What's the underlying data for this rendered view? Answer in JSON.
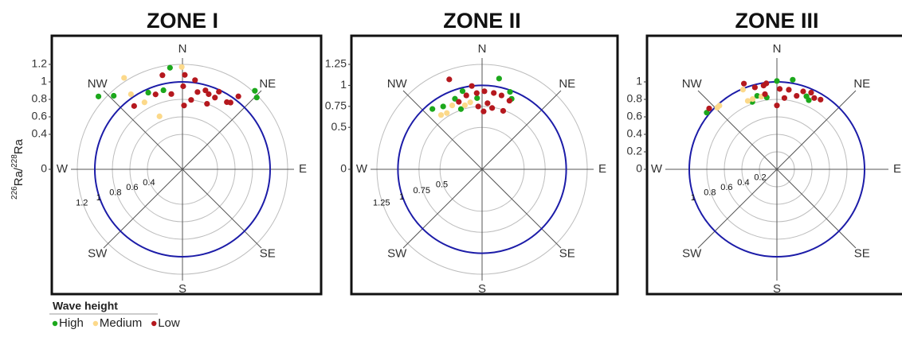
{
  "legend": {
    "title": "Wave height"
  },
  "chart_data": [
    {
      "type": "polar-scatter",
      "title": "ZONE I",
      "ylabel": [
        "226",
        "Ra/",
        "228",
        "Ra"
      ],
      "directions": [
        "N",
        "NE",
        "E",
        "SE",
        "S",
        "SW",
        "W",
        "NW"
      ],
      "rlim": [
        0,
        1.2
      ],
      "rticks": [
        0,
        0.4,
        0.6,
        0.8,
        1,
        1.2
      ],
      "reference_ring": 1,
      "ring_color": "#1c1ca8",
      "series": [
        {
          "name": "High",
          "color": "#1ca81c",
          "theta": [
            353,
            311,
            317,
            336,
            42.6,
            45.9,
            346.5
          ],
          "r": [
            1.17,
            1.27,
            1.15,
            0.96,
            1.22,
            1.18,
            0.93
          ]
        },
        {
          "name": "Medium",
          "color": "#fcd98a",
          "theta": [
            327.5,
            330.5,
            336.6,
            359.6,
            325.6
          ],
          "r": [
            1.24,
            0.88,
            0.66,
            1.17,
            1.04
          ]
        },
        {
          "name": "Low",
          "color": "#b5181e",
          "theta": [
            322.7,
            348,
            1.4,
            8,
            0.5,
            351.6,
            11,
            16.2,
            25.1,
            35.7,
            37.4,
            7.1,
            19.2,
            24.3,
            1.4,
            340.3,
            20.5,
            33.4
          ],
          "r": [
            0.91,
            1.1,
            1.08,
            1.03,
            0.95,
            0.87,
            0.9,
            0.94,
            0.98,
            0.94,
            1.05,
            0.8,
            0.91,
            0.9,
            0.73,
            0.91,
            0.8,
            0.92
          ]
        }
      ]
    },
    {
      "type": "polar-scatter",
      "title": "ZONE II",
      "directions": [
        "N",
        "NE",
        "E",
        "SE",
        "S",
        "SW",
        "W",
        "NW"
      ],
      "rlim": [
        0,
        1.25
      ],
      "rticks": [
        0,
        0.5,
        0.75,
        1,
        1.25
      ],
      "reference_ring": 1,
      "ring_color": "#1c1ca8",
      "series": [
        {
          "name": "High",
          "color": "#1ca81c",
          "theta": [
            10.6,
            320.6,
            328.3,
            346,
            19.8,
            22.7,
            339,
            356,
            340.7
          ],
          "r": [
            1.1,
            0.93,
            0.88,
            0.96,
            0.98,
            0.91,
            0.9,
            0.85,
            0.76
          ]
        },
        {
          "name": "Medium",
          "color": "#fcd98a",
          "theta": [
            335,
            328,
            350,
            345,
            323
          ],
          "r": [
            0.84,
            0.79,
            0.81,
            0.79,
            0.81
          ]
        },
        {
          "name": "Low",
          "color": "#b5181e",
          "theta": [
            340,
            353,
            356,
            1.7,
            8.7,
            14.7,
            4.7,
            1.5,
            9.3,
            19.8,
            21.7,
            348,
            356.5,
            341
          ],
          "r": [
            1.14,
            1.0,
            0.91,
            0.93,
            0.92,
            0.91,
            0.79,
            0.69,
            0.74,
            0.74,
            0.88,
            0.9,
            0.75,
            0.85
          ]
        }
      ]
    },
    {
      "type": "polar-scatter",
      "title": "ZONE III",
      "directions": [
        "N",
        "NE",
        "E",
        "SE",
        "S",
        "SW",
        "W",
        "NW"
      ],
      "rlim": [
        0,
        1.2
      ],
      "rticks": [
        0,
        0.2,
        0.4,
        0.6,
        0.8,
        1
      ],
      "reference_ring": 1,
      "ring_color": "#1c1ca8",
      "series": [
        {
          "name": "High",
          "color": "#1ca81c",
          "theta": [
            0,
            10,
            345,
            352,
            22,
            24.7,
            309,
            340
          ],
          "r": [
            1.01,
            1.04,
            0.87,
            0.83,
            0.9,
            0.87,
            1.03,
            0.82
          ]
        },
        {
          "name": "Medium",
          "color": "#fcd98a",
          "theta": [
            316,
            337,
            341,
            337,
            348,
            318
          ],
          "r": [
            0.98,
            0.85,
            0.85,
            0.99,
            0.85,
            0.98
          ]
        },
        {
          "name": "Low",
          "color": "#b5181e",
          "theta": [
            312,
            339,
            351,
            353,
            2,
            8.5,
            6,
            0,
            15,
            18.6,
            27.6,
            32,
            351,
            24,
            345
          ],
          "r": [
            1.04,
            1.05,
            0.97,
            0.99,
            0.92,
            0.92,
            0.82,
            0.73,
            0.87,
            0.94,
            0.92,
            0.94,
            0.87,
            0.96,
            0.97
          ]
        }
      ]
    }
  ]
}
